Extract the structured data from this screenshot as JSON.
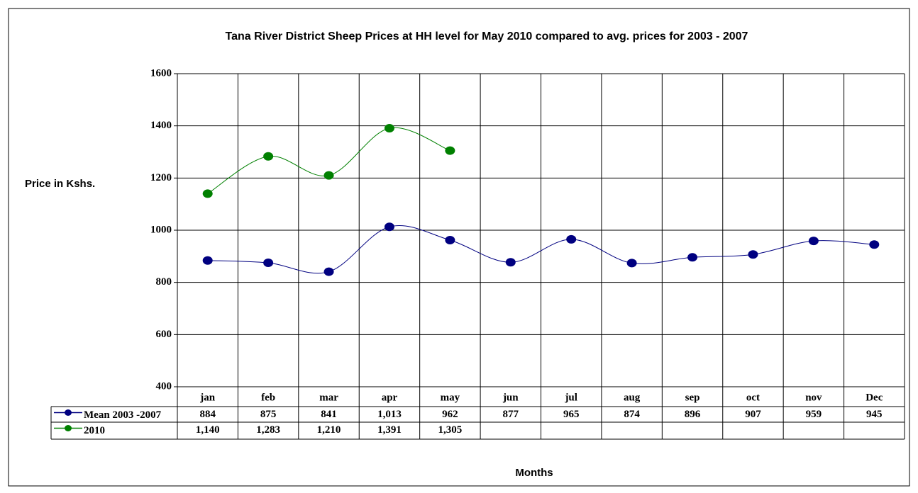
{
  "chart_data": {
    "type": "line",
    "title": "Tana River District Sheep Prices at HH level for May 2010 compared to avg. prices for 2003 - 2007",
    "y_label": "Price in Kshs.",
    "x_label": "Months",
    "categories": [
      "jan",
      "feb",
      "mar",
      "apr",
      "may",
      "jun",
      "jul",
      "aug",
      "sep",
      "oct",
      "nov",
      "Dec"
    ],
    "series": [
      {
        "name": "Mean 2003 -2007",
        "color": "#000080",
        "values": [
          884,
          875,
          841,
          1013,
          962,
          877,
          965,
          874,
          896,
          907,
          959,
          945
        ],
        "value_labels": [
          "884",
          "875",
          "841",
          "1,013",
          "962",
          "877",
          "965",
          "874",
          "896",
          "907",
          "959",
          "945"
        ]
      },
      {
        "name": "2010",
        "color": "#008000",
        "values": [
          1140,
          1283,
          1210,
          1391,
          1305,
          null,
          null,
          null,
          null,
          null,
          null,
          null
        ],
        "value_labels": [
          "1,140",
          "1,283",
          "1,210",
          "1,391",
          "1,305",
          null,
          null,
          null,
          null,
          null,
          null,
          null
        ]
      }
    ],
    "ylim": [
      400,
      1600
    ],
    "yticks": [
      400,
      600,
      800,
      1000,
      1200,
      1400,
      1600
    ],
    "grid": true
  }
}
